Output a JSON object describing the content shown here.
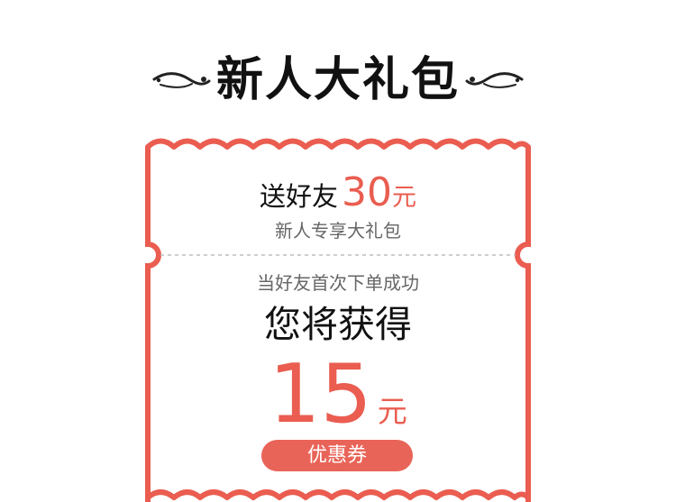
{
  "header": {
    "title": "新人大礼包"
  },
  "coupon": {
    "send_prefix": "送好友",
    "send_amount": "30",
    "send_unit": "元",
    "newcomer_text": "新人专享大礼包",
    "condition_text": "当好友首次下单成功",
    "you_get_text": "您将获得",
    "reward_amount": "15",
    "reward_unit": "元",
    "coupon_label": "优惠券"
  },
  "colors": {
    "accent": "#ea5d50",
    "pill": "#e96458",
    "text_dark": "#111111",
    "text_muted": "#666666",
    "dashed": "#bdbdbd"
  },
  "icons": {
    "left_decoration": "flourish-icon",
    "right_decoration": "flourish-icon"
  }
}
